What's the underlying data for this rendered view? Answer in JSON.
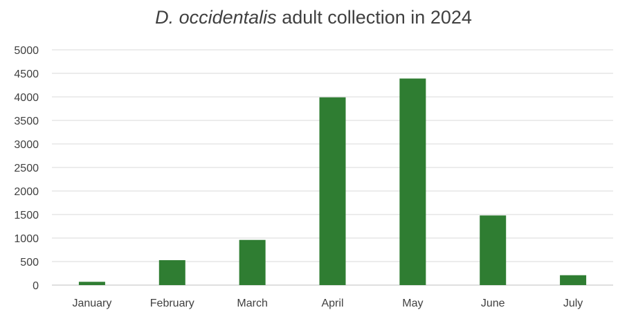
{
  "chart_data": {
    "type": "bar",
    "title_italic": "D. occidentalis",
    "title_rest": " adult collection in 2024",
    "categories": [
      "January",
      "February",
      "March",
      "April",
      "May",
      "June",
      "July"
    ],
    "values": [
      70,
      530,
      960,
      3990,
      4390,
      1480,
      210
    ],
    "xlabel": "",
    "ylabel": "",
    "ylim": [
      0,
      5000
    ],
    "yticks": [
      0,
      500,
      1000,
      1500,
      2000,
      2500,
      3000,
      3500,
      4000,
      4500,
      5000
    ],
    "grid": true,
    "legend": "none",
    "bar_color": "#2f7d32",
    "grid_color": "#d9d9d9"
  }
}
